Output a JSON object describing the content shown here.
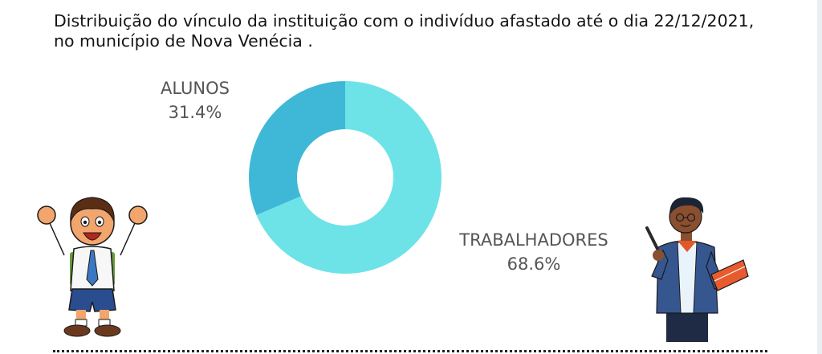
{
  "chart_data": {
    "type": "pie",
    "title": "Distribuição do vínculo da instituição com o  indivíduo afastado até o dia 22/12/2021, no município de Nova Venécia .",
    "categories": [
      "ALUNOS",
      "TRABALHADORES"
    ],
    "values": [
      31.4,
      68.6
    ],
    "value_labels": [
      "31.4%",
      "68.6%"
    ],
    "colors": [
      "#3eb8d6",
      "#6de3e8"
    ],
    "donut": true
  },
  "illustrations": {
    "left": "student-boy-cheering-illustration",
    "right": "teacher-with-pointer-and-book-illustration"
  }
}
